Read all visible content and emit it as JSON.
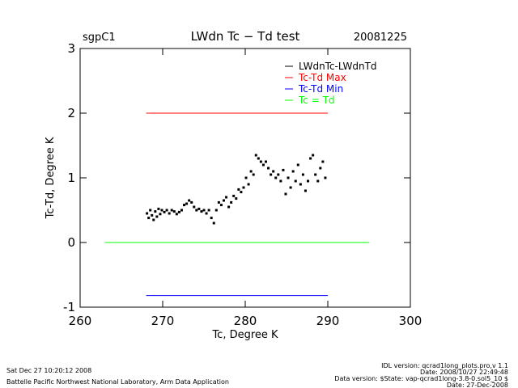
{
  "chart_data": {
    "type": "scatter",
    "title": "LWdn Tc − Td test",
    "site": "sgpC1",
    "date": "20081225",
    "x_label": "Tc, Degree K",
    "y_label": "Tc-Td, Degree K",
    "xlim": [
      260,
      300
    ],
    "xticks": [
      260,
      270,
      280,
      290,
      300
    ],
    "ylim": [
      -1,
      3
    ],
    "yticks": [
      -1,
      0,
      1,
      2,
      3
    ],
    "series": [
      {
        "name": "LWdnTc-LWdnTd",
        "color": "#000000",
        "mode": "markers",
        "x": [
          268.1,
          268.3,
          268.5,
          268.7,
          268.9,
          269.1,
          269.3,
          269.5,
          269.7,
          269.9,
          270.2,
          270.5,
          270.8,
          271.1,
          271.4,
          271.7,
          272.0,
          272.3,
          272.6,
          272.9,
          273.2,
          273.5,
          273.8,
          274.1,
          274.4,
          274.7,
          275.0,
          275.3,
          275.6,
          275.9,
          276.2,
          276.5,
          276.8,
          277.1,
          277.4,
          277.7,
          278.0,
          278.3,
          278.6,
          278.9,
          279.2,
          279.5,
          279.8,
          280.1,
          280.4,
          280.7,
          281.0,
          281.3,
          281.6,
          281.9,
          282.2,
          282.5,
          282.8,
          283.1,
          283.4,
          283.7,
          284.0,
          284.3,
          284.6,
          284.9,
          285.2,
          285.5,
          285.8,
          286.1,
          286.4,
          286.7,
          287.0,
          287.3,
          287.6,
          287.9,
          288.2,
          288.5,
          288.8,
          289.1,
          289.4,
          289.7
        ],
        "values": [
          0.45,
          0.38,
          0.5,
          0.42,
          0.35,
          0.48,
          0.4,
          0.52,
          0.44,
          0.5,
          0.47,
          0.5,
          0.45,
          0.5,
          0.48,
          0.44,
          0.47,
          0.5,
          0.58,
          0.6,
          0.65,
          0.62,
          0.55,
          0.5,
          0.52,
          0.48,
          0.5,
          0.45,
          0.5,
          0.38,
          0.3,
          0.5,
          0.62,
          0.58,
          0.65,
          0.7,
          0.55,
          0.62,
          0.72,
          0.68,
          0.82,
          0.78,
          0.85,
          1.0,
          0.9,
          1.1,
          1.05,
          1.35,
          1.3,
          1.25,
          1.2,
          1.25,
          1.15,
          1.05,
          1.1,
          1.0,
          1.05,
          0.95,
          1.12,
          0.75,
          1.0,
          0.85,
          1.1,
          0.95,
          1.2,
          0.9,
          1.05,
          0.8,
          0.95,
          1.3,
          1.35,
          1.05,
          0.95,
          1.15,
          1.25,
          1.0
        ]
      },
      {
        "name": "Tc-Td Max",
        "color": "#ff0000",
        "mode": "lines",
        "x": [
          268,
          290
        ],
        "values": [
          2,
          2
        ]
      },
      {
        "name": "Tc-Td Min",
        "color": "#0000ff",
        "mode": "lines",
        "x": [
          268,
          290
        ],
        "values": [
          -0.82,
          -0.82
        ]
      },
      {
        "name": "Tc = Td",
        "color": "#00ff00",
        "mode": "lines",
        "x": [
          263,
          295
        ],
        "values": [
          0,
          0
        ]
      }
    ]
  },
  "footer": {
    "timestamp": "Sat Dec 27 10:20:12 2008",
    "lab": "Battelle Pacific Northwest National Laboratory, Arm Data Application",
    "idl_version": "IDL version: qcrad1long_plots.pro,v 1.1",
    "idl_date": "Date: 2008/10/27 22:49:48",
    "data_version": "Data version: $State: vap-qcrad1long-3.8-0.sol5_10 $",
    "data_date": "Date: 27-Dec-2008"
  }
}
